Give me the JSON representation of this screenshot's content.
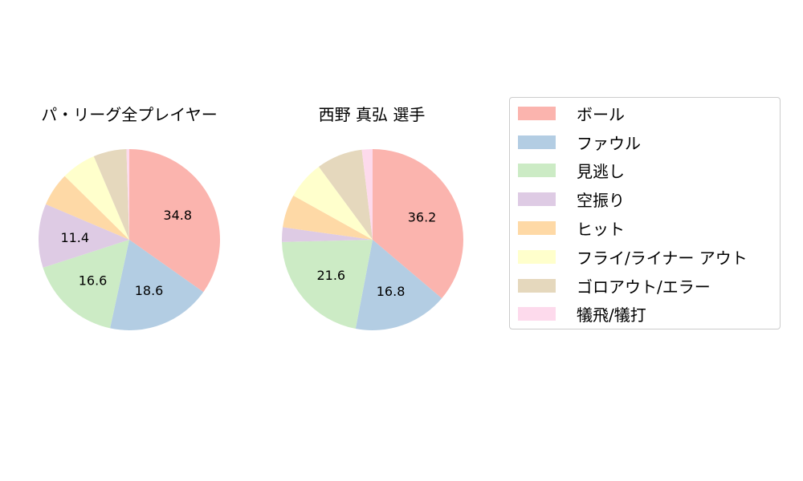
{
  "chart_data": [
    {
      "type": "pie",
      "title": "パ・リーグ全プレイヤー",
      "categories": [
        "ボール",
        "ファウル",
        "見逃し",
        "空振り",
        "ヒット",
        "フライ/ライナー アウト",
        "ゴロアウト/エラー",
        "犠飛/犠打"
      ],
      "values": [
        34.8,
        18.6,
        16.6,
        11.4,
        6.0,
        6.2,
        5.9,
        0.5
      ],
      "labels_shown": [
        "34.8",
        "18.6",
        "16.6",
        "11.4",
        "",
        "",
        "",
        ""
      ]
    },
    {
      "type": "pie",
      "title": "西野 真弘  選手",
      "categories": [
        "ボール",
        "ファウル",
        "見逃し",
        "空振り",
        "ヒット",
        "フライ/ライナー アウト",
        "ゴロアウト/エラー",
        "犠飛/犠打"
      ],
      "values": [
        36.2,
        16.8,
        21.6,
        2.6,
        5.9,
        6.8,
        8.2,
        1.9
      ],
      "labels_shown": [
        "36.2",
        "16.8",
        "21.6",
        "",
        "",
        "",
        "",
        ""
      ]
    }
  ],
  "charts": [
    {
      "title": "パ・リーグ全プレイヤー"
    },
    {
      "title": "西野 真弘  選手"
    }
  ],
  "legend": {
    "items": [
      {
        "label": "ボール",
        "color": "#fbb4ae"
      },
      {
        "label": "ファウル",
        "color": "#b3cde3"
      },
      {
        "label": "見逃し",
        "color": "#ccebc5"
      },
      {
        "label": "空振り",
        "color": "#decbe4"
      },
      {
        "label": "ヒット",
        "color": "#fed9a6"
      },
      {
        "label": "フライ/ライナー アウト",
        "color": "#ffffcc"
      },
      {
        "label": "ゴロアウト/エラー",
        "color": "#e5d8bd"
      },
      {
        "label": "犠飛/犠打",
        "color": "#fddaec"
      }
    ]
  }
}
